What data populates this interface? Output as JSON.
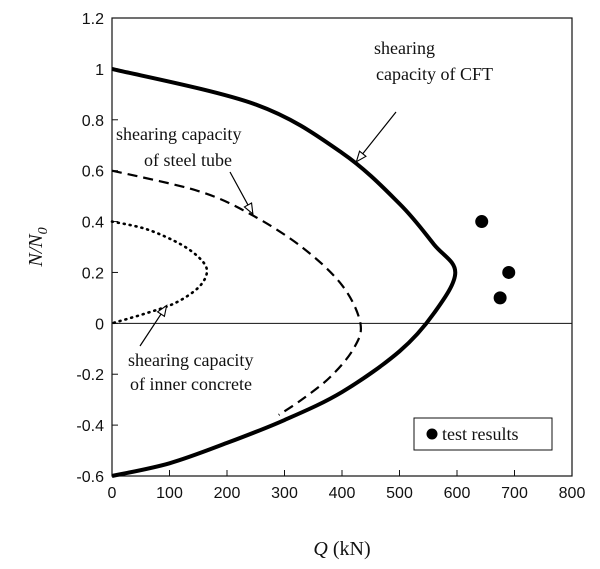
{
  "chart_data": {
    "type": "line",
    "xlabel_symbol": "Q",
    "xlabel_unit": " (kN)",
    "ylabel_base": "N/N",
    "ylabel_sub": "0",
    "xlim": [
      0,
      800
    ],
    "ylim": [
      -0.6,
      1.2
    ],
    "x_ticks": [
      "0",
      "100",
      "200",
      "300",
      "400",
      "500",
      "600",
      "700",
      "800"
    ],
    "y_ticks": [
      "-0.6",
      "-0.4",
      "-0.2",
      "0",
      "0.2",
      "0.4",
      "0.6",
      "0.8",
      "1",
      "1.2"
    ],
    "grid": false,
    "series": [
      {
        "style": "solid",
        "x": [
          0,
          250,
          400,
          500,
          560,
          597,
          560,
          500,
          400,
          300,
          200,
          100,
          0
        ],
        "y": [
          1.0,
          0.86,
          0.67,
          0.47,
          0.31,
          0.2,
          0.04,
          -0.11,
          -0.27,
          -0.38,
          -0.47,
          -0.55,
          -0.6
        ]
      },
      {
        "style": "dashed",
        "x": [
          0,
          150,
          240,
          330,
          400,
          432,
          420,
          380,
          330,
          290
        ],
        "y": [
          0.6,
          0.52,
          0.43,
          0.3,
          0.15,
          0.0,
          -0.1,
          -0.21,
          -0.3,
          -0.36
        ]
      },
      {
        "style": "dotted",
        "x": [
          0,
          60,
          120,
          155,
          165,
          150,
          110,
          60,
          0
        ],
        "y": [
          0.4,
          0.37,
          0.31,
          0.25,
          0.2,
          0.14,
          0.08,
          0.04,
          0.0
        ]
      },
      {
        "style": "markers",
        "x": [
          643,
          690,
          675
        ],
        "y": [
          0.4,
          0.2,
          0.1
        ]
      }
    ],
    "annotations": [
      {
        "lines": [
          "shearing",
          "capacity of CFT"
        ],
        "target": [
          425,
          0.635
        ]
      },
      {
        "lines": [
          "shearing capacity",
          "of steel tube"
        ],
        "target": [
          245,
          0.43
        ]
      },
      {
        "lines": [
          "shearing capacity",
          "of inner concrete"
        ],
        "target": [
          95,
          0.07
        ]
      }
    ],
    "legend": {
      "label": "test results",
      "position": "bottom-right"
    }
  }
}
